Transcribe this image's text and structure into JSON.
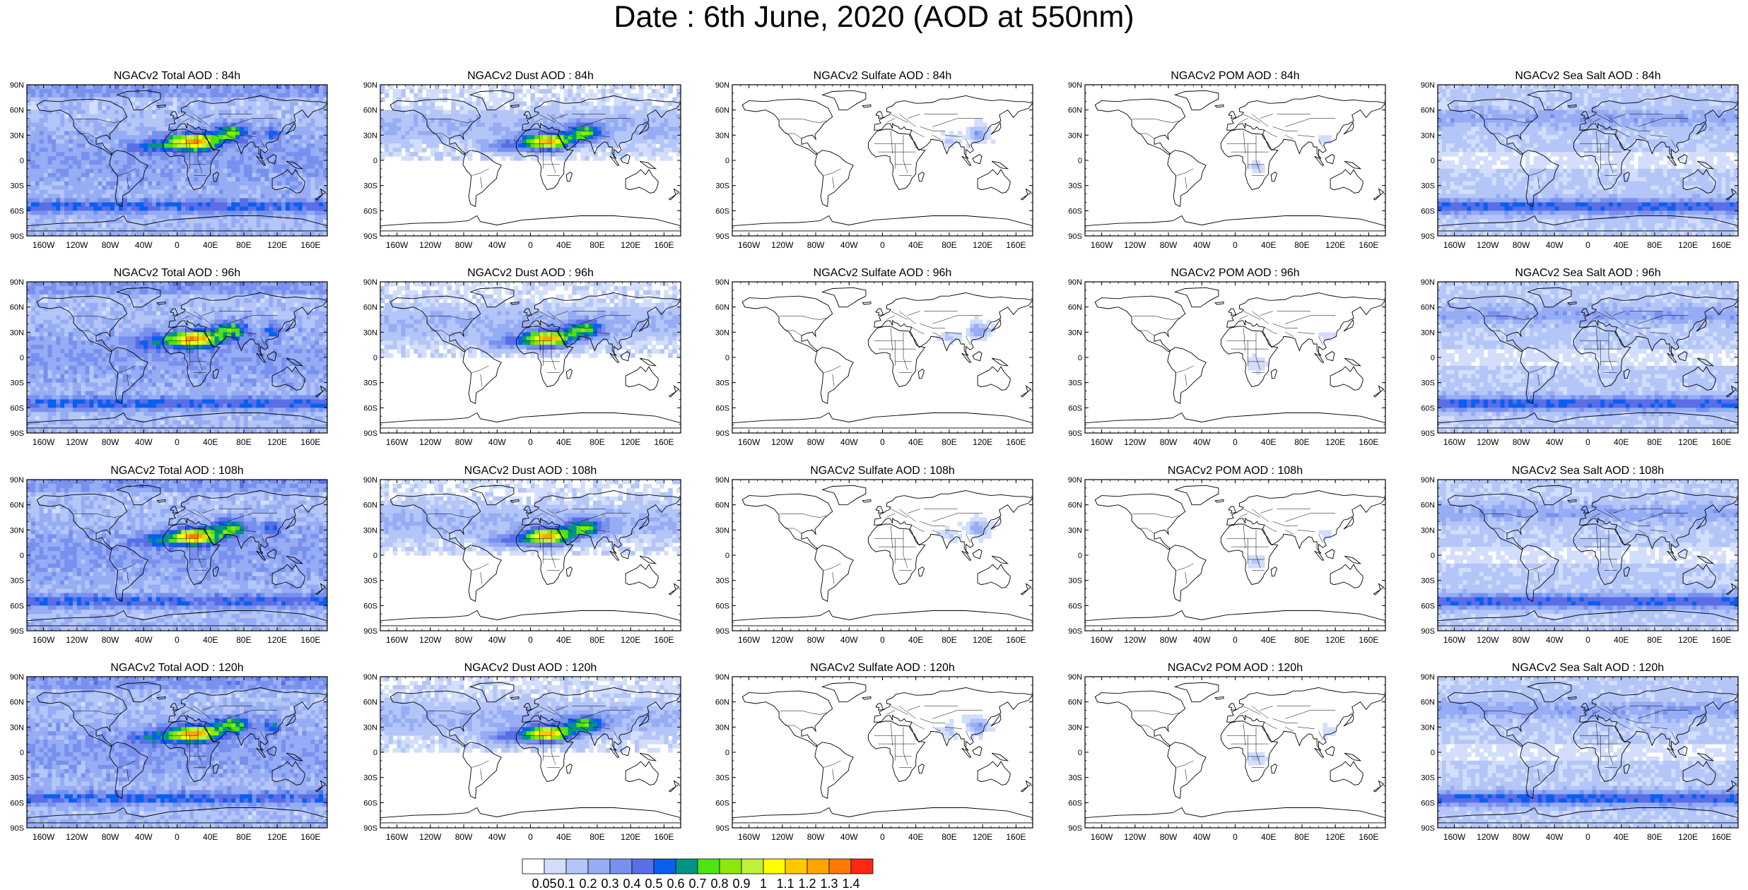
{
  "title": "Date : 6th June, 2020 (AOD at 550nm)",
  "panel_titles": [
    [
      "NGACv2 Total AOD : 84h",
      "NGACv2 Dust AOD : 84h",
      "NGACv2 Sulfate AOD : 84h",
      "NGACv2 POM AOD : 84h",
      "NGACv2 Sea Salt AOD : 84h"
    ],
    [
      "NGACv2 Total AOD : 96h",
      "NGACv2 Dust AOD : 96h",
      "NGACv2 Sulfate AOD : 96h",
      "NGACv2 POM AOD : 96h",
      "NGACv2 Sea Salt AOD : 96h"
    ],
    [
      "NGACv2 Total AOD : 108h",
      "NGACv2 Dust AOD : 108h",
      "NGACv2 Sulfate AOD : 108h",
      "NGACv2 POM AOD : 108h",
      "NGACv2 Sea Salt AOD : 108h"
    ],
    [
      "NGACv2 Total AOD : 120h",
      "NGACv2 Dust AOD : 120h",
      "NGACv2 Sulfate AOD : 120h",
      "NGACv2 POM AOD : 120h",
      "NGACv2 Sea Salt  AOD : 120h"
    ]
  ],
  "panel_kinds": [
    "total",
    "dust",
    "sulfate",
    "pom",
    "seasalt"
  ],
  "lat_labels": [
    "90N",
    "60N",
    "30N",
    "0",
    "30S",
    "60S",
    "90S"
  ],
  "lon_labels": [
    "160W",
    "120W",
    "80W",
    "40W",
    "0",
    "40E",
    "80E",
    "120E",
    "160E"
  ],
  "lon_values": [
    -160,
    -120,
    -80,
    -40,
    0,
    40,
    80,
    120,
    160
  ],
  "colorbar": {
    "labels": [
      "0.05",
      "0.1",
      "0.2",
      "0.3",
      "0.4",
      "0.5",
      "0.6",
      "0.7",
      "0.8",
      "0.9",
      "1",
      "1.1",
      "1.2",
      "1.3",
      "1.4"
    ],
    "colors": [
      "#ffffff",
      "#d2defb",
      "#b4c6f8",
      "#96acf4",
      "#7891ee",
      "#5a6ee6",
      "#0a5ff0",
      "#009485",
      "#4ee40f",
      "#8ce80a",
      "#bff03c",
      "#ffff00",
      "#ffc800",
      "#ffa500",
      "#ff7800",
      "#ff2814"
    ]
  }
}
